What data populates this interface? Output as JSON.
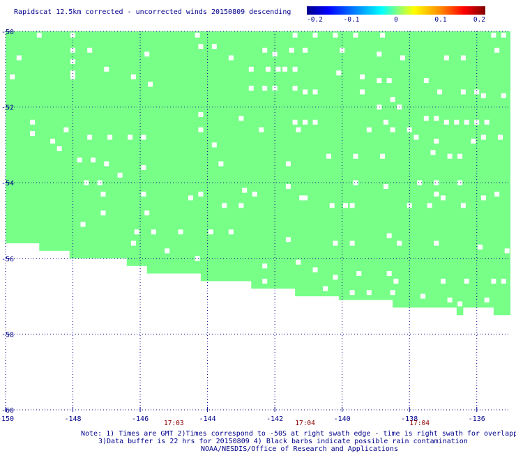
{
  "chart_data": {
    "type": "heatmap",
    "title": "Rapidscat 12.5km corrected - uncorrected winds 20150809 descending",
    "xlim": [
      -150,
      -135
    ],
    "ylim": [
      -60,
      -50
    ],
    "x_ticks": [
      {
        "value": -150,
        "label": "-150"
      },
      {
        "value": -148,
        "label": "-148"
      },
      {
        "value": -146,
        "label": "-146"
      },
      {
        "value": -144,
        "label": "-144"
      },
      {
        "value": -142,
        "label": "-142"
      },
      {
        "value": -140,
        "label": "-140"
      },
      {
        "value": -138,
        "label": "-138"
      },
      {
        "value": -136,
        "label": "-136"
      }
    ],
    "y_ticks": [
      {
        "value": -50,
        "label": "-50"
      },
      {
        "value": -52,
        "label": "-52"
      },
      {
        "value": -54,
        "label": "-54"
      },
      {
        "value": -56,
        "label": "-56"
      },
      {
        "value": -58,
        "label": "-58"
      },
      {
        "value": -60,
        "label": "-60"
      }
    ],
    "grid": true,
    "colorbar": {
      "min": -0.2,
      "max": 0.2,
      "ticks": [
        {
          "value": -0.2,
          "label": "-0.2"
        },
        {
          "value": -0.1,
          "label": "-0.1"
        },
        {
          "value": 0,
          "label": "0"
        },
        {
          "value": 0.1,
          "label": "0.1"
        },
        {
          "value": 0.2,
          "label": "0.2"
        }
      ]
    },
    "field": {
      "value": 0,
      "color": "#77ff88",
      "boundary": [
        [
          -150,
          -55.6
        ],
        [
          -149.0,
          -55.6
        ],
        [
          -149.0,
          -55.8
        ],
        [
          -148.1,
          -55.8
        ],
        [
          -148.1,
          -56.0
        ],
        [
          -146.4,
          -56.0
        ],
        [
          -146.4,
          -56.2
        ],
        [
          -145.8,
          -56.2
        ],
        [
          -145.8,
          -56.4
        ],
        [
          -144.2,
          -56.4
        ],
        [
          -144.2,
          -56.6
        ],
        [
          -142.7,
          -56.6
        ],
        [
          -142.7,
          -56.8
        ],
        [
          -141.4,
          -56.8
        ],
        [
          -141.4,
          -57.0
        ],
        [
          -140.1,
          -57.0
        ],
        [
          -140.1,
          -57.1
        ],
        [
          -138.5,
          -57.1
        ],
        [
          -138.5,
          -57.3
        ],
        [
          -136.6,
          -57.3
        ],
        [
          -136.6,
          -57.5
        ],
        [
          -136.4,
          -57.5
        ],
        [
          -136.4,
          -57.3
        ],
        [
          -135.5,
          -57.3
        ],
        [
          -135.5,
          -57.5
        ],
        [
          -135,
          -57.5
        ]
      ]
    },
    "missing_cells": [
      [
        -149.0,
        -50.1
      ],
      [
        -148.0,
        -50.1
      ],
      [
        -144.3,
        -50.1
      ],
      [
        -141.4,
        -50.1
      ],
      [
        -140.8,
        -50.1
      ],
      [
        -138.8,
        -50.1
      ],
      [
        -135.5,
        -50.1
      ],
      [
        -135.2,
        -50.1
      ],
      [
        -140.2,
        -50.1
      ],
      [
        -139.6,
        -50.1
      ],
      [
        -149.6,
        -50.7
      ],
      [
        -148.0,
        -50.5
      ],
      [
        -147.5,
        -50.5
      ],
      [
        -145.8,
        -50.6
      ],
      [
        -144.2,
        -50.4
      ],
      [
        -143.8,
        -50.4
      ],
      [
        -143.3,
        -50.7
      ],
      [
        -142.3,
        -50.5
      ],
      [
        -142.0,
        -50.6
      ],
      [
        -141.5,
        -50.5
      ],
      [
        -141.1,
        -50.5
      ],
      [
        -140.0,
        -50.5
      ],
      [
        -138.9,
        -50.6
      ],
      [
        -138.2,
        -50.7
      ],
      [
        -136.9,
        -50.7
      ],
      [
        -136.4,
        -50.7
      ],
      [
        -135.4,
        -50.5
      ],
      [
        -149.8,
        -51.2
      ],
      [
        -148.0,
        -50.8
      ],
      [
        -148.0,
        -51.1
      ],
      [
        -147.0,
        -51.0
      ],
      [
        -146.2,
        -51.2
      ],
      [
        -145.7,
        -51.4
      ],
      [
        -142.7,
        -51.0
      ],
      [
        -142.2,
        -51.0
      ],
      [
        -141.9,
        -51.0
      ],
      [
        -141.7,
        -51.0
      ],
      [
        -141.4,
        -51.0
      ],
      [
        -140.1,
        -51.1
      ],
      [
        -139.4,
        -51.2
      ],
      [
        -138.9,
        -51.3
      ],
      [
        -138.6,
        -51.3
      ],
      [
        -137.5,
        -51.3
      ],
      [
        -148.0,
        -51.2
      ],
      [
        -142.7,
        -51.5
      ],
      [
        -142.3,
        -51.5
      ],
      [
        -142.0,
        -51.5
      ],
      [
        -141.4,
        -51.5
      ],
      [
        -141.1,
        -51.6
      ],
      [
        -140.8,
        -51.6
      ],
      [
        -139.4,
        -51.6
      ],
      [
        -138.5,
        -51.8
      ],
      [
        -137.1,
        -51.6
      ],
      [
        -136.4,
        -51.6
      ],
      [
        -136.0,
        -51.6
      ],
      [
        -135.8,
        -51.7
      ],
      [
        -135.2,
        -51.7
      ],
      [
        -144.2,
        -52.2
      ],
      [
        -143.0,
        -52.3
      ],
      [
        -141.4,
        -52.4
      ],
      [
        -141.1,
        -52.4
      ],
      [
        -140.8,
        -52.4
      ],
      [
        -138.9,
        -52.0
      ],
      [
        -138.7,
        -52.4
      ],
      [
        -138.3,
        -52.0
      ],
      [
        -138.0,
        -52.6
      ],
      [
        -137.5,
        -52.3
      ],
      [
        -137.2,
        -52.3
      ],
      [
        -136.9,
        -52.4
      ],
      [
        -136.6,
        -52.4
      ],
      [
        -136.3,
        -52.4
      ],
      [
        -136.0,
        -52.4
      ],
      [
        -135.7,
        -52.4
      ],
      [
        -149.2,
        -52.4
      ],
      [
        -149.2,
        -52.7
      ],
      [
        -148.2,
        -52.6
      ],
      [
        -147.5,
        -52.8
      ],
      [
        -146.9,
        -52.8
      ],
      [
        -146.3,
        -52.8
      ],
      [
        -145.9,
        -52.8
      ],
      [
        -144.2,
        -52.6
      ],
      [
        -143.8,
        -53.0
      ],
      [
        -142.4,
        -52.6
      ],
      [
        -141.3,
        -52.6
      ],
      [
        -139.2,
        -52.6
      ],
      [
        -138.5,
        -52.6
      ],
      [
        -137.8,
        -52.8
      ],
      [
        -137.2,
        -52.9
      ],
      [
        -136.1,
        -52.9
      ],
      [
        -135.8,
        -52.8
      ],
      [
        -135.3,
        -52.8
      ],
      [
        -148.6,
        -52.9
      ],
      [
        -148.4,
        -53.1
      ],
      [
        -147.8,
        -53.4
      ],
      [
        -147.4,
        -53.4
      ],
      [
        -147.0,
        -53.5
      ],
      [
        -145.9,
        -53.6
      ],
      [
        -143.6,
        -53.5
      ],
      [
        -141.6,
        -53.5
      ],
      [
        -140.4,
        -53.3
      ],
      [
        -139.6,
        -53.3
      ],
      [
        -138.8,
        -53.3
      ],
      [
        -137.3,
        -53.2
      ],
      [
        -136.8,
        -53.3
      ],
      [
        -136.5,
        -53.3
      ],
      [
        -147.6,
        -54.0
      ],
      [
        -147.2,
        -54.0
      ],
      [
        -146.6,
        -53.8
      ],
      [
        -141.6,
        -54.1
      ],
      [
        -139.6,
        -54.0
      ],
      [
        -138.7,
        -54.1
      ],
      [
        -137.2,
        -54.0
      ],
      [
        -136.5,
        -54.0
      ],
      [
        -134.9,
        -54.0
      ],
      [
        -147.1,
        -54.3
      ],
      [
        -145.9,
        -54.3
      ],
      [
        -144.2,
        -54.3
      ],
      [
        -142.9,
        -54.2
      ],
      [
        -142.6,
        -54.3
      ],
      [
        -141.2,
        -54.4
      ],
      [
        -137.7,
        -54.0
      ],
      [
        -137.2,
        -54.3
      ],
      [
        -137.0,
        -54.4
      ],
      [
        -135.8,
        -54.4
      ],
      [
        -135.4,
        -54.3
      ],
      [
        -147.1,
        -54.8
      ],
      [
        -145.8,
        -54.8
      ],
      [
        -144.5,
        -54.4
      ],
      [
        -143.5,
        -54.6
      ],
      [
        -143.0,
        -54.6
      ],
      [
        -141.1,
        -54.4
      ],
      [
        -140.3,
        -54.6
      ],
      [
        -139.9,
        -54.6
      ],
      [
        -139.7,
        -54.6
      ],
      [
        -138.0,
        -54.6
      ],
      [
        -137.4,
        -54.6
      ],
      [
        -136.4,
        -54.6
      ],
      [
        -147.7,
        -55.1
      ],
      [
        -146.1,
        -55.3
      ],
      [
        -145.6,
        -55.3
      ],
      [
        -144.8,
        -55.3
      ],
      [
        -143.9,
        -55.3
      ],
      [
        -143.3,
        -55.3
      ],
      [
        -141.6,
        -55.5
      ],
      [
        -140.2,
        -55.6
      ],
      [
        -139.7,
        -55.6
      ],
      [
        -138.6,
        -55.4
      ],
      [
        -138.3,
        -55.6
      ],
      [
        -137.2,
        -55.6
      ],
      [
        -135.9,
        -55.7
      ],
      [
        -135.1,
        -55.8
      ],
      [
        -146.2,
        -55.6
      ],
      [
        -145.2,
        -55.8
      ],
      [
        -144.3,
        -56.0
      ],
      [
        -142.3,
        -56.2
      ],
      [
        -141.3,
        -56.1
      ],
      [
        -140.8,
        -56.3
      ],
      [
        -140.2,
        -56.5
      ],
      [
        -139.5,
        -56.4
      ],
      [
        -138.6,
        -56.4
      ],
      [
        -138.4,
        -56.6
      ],
      [
        -137.0,
        -56.6
      ],
      [
        -136.3,
        -56.6
      ],
      [
        -135.5,
        -56.6
      ],
      [
        -135.2,
        -56.6
      ],
      [
        -142.3,
        -56.6
      ],
      [
        -141.7,
        -56.9
      ],
      [
        -140.5,
        -56.8
      ],
      [
        -139.7,
        -56.9
      ],
      [
        -139.2,
        -56.9
      ],
      [
        -138.5,
        -56.9
      ],
      [
        -137.6,
        -57.0
      ],
      [
        -136.8,
        -57.1
      ],
      [
        -136.5,
        -57.2
      ],
      [
        -135.7,
        -57.1
      ]
    ],
    "time_labels": [
      {
        "x": -145.0,
        "label": "17:03"
      },
      {
        "x": -141.1,
        "label": "17:04"
      },
      {
        "x": -137.7,
        "label": "17:04"
      }
    ]
  },
  "notes": [
    "Note: 1) Times are GMT 2)Times correspond to -50S at right swath edge - time is right swath for overlapping swaths at -50S",
    "3)Data buffer is 22 hrs for 20150809 4) Black barbs indicate possible rain contamination",
    "NOAA/NESDIS/Office of Research and Applications"
  ],
  "colors": {
    "title": "#00008b",
    "ticks": "#00008b",
    "grid": "#00008b",
    "time_labels": "#8b0000",
    "field": "#77ff88",
    "colorbar": [
      "#00008b",
      "#0000ff",
      "#00aaff",
      "#00ffff",
      "#77ff88",
      "#ffff00",
      "#ff8800",
      "#ff0000",
      "#800000"
    ]
  }
}
